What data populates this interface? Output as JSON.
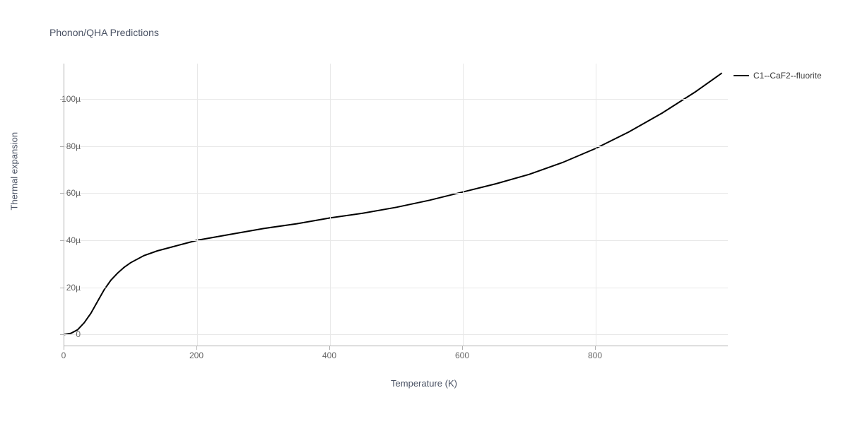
{
  "chart": {
    "type": "line",
    "title": "Phonon/QHA Predictions",
    "xlabel": "Temperature (K)",
    "ylabel": "Thermal expansion",
    "background_color": "#ffffff",
    "grid_color": "#e8e8e8",
    "axis_color": "#b0b0b0",
    "text_color": "#4a5264",
    "tick_label_color": "#666666",
    "title_fontsize": 14,
    "label_fontsize": 13,
    "tick_fontsize": 12,
    "line_color": "#000000",
    "line_width": 2,
    "xlim": [
      0,
      1000
    ],
    "ylim": [
      -5,
      115
    ],
    "x_ticks": [
      0,
      200,
      400,
      600,
      800
    ],
    "x_tick_labels": [
      "0",
      "200",
      "400",
      "600",
      "800"
    ],
    "y_ticks": [
      0,
      20,
      40,
      60,
      80,
      100
    ],
    "y_tick_labels": [
      "0",
      "20µ",
      "40µ",
      "60µ",
      "80µ",
      "100µ"
    ],
    "x_max_visible": 990,
    "legend": {
      "label": "C1--CaF2--fluorite",
      "line_color": "#000000"
    },
    "series": {
      "x": [
        0,
        10,
        20,
        30,
        40,
        50,
        60,
        70,
        80,
        90,
        100,
        120,
        140,
        160,
        180,
        200,
        250,
        300,
        350,
        400,
        450,
        500,
        550,
        600,
        650,
        700,
        750,
        800,
        850,
        900,
        950,
        990
      ],
      "y": [
        0,
        0.5,
        2,
        5,
        9,
        14,
        19,
        23,
        26,
        28.5,
        30.5,
        33.5,
        35.5,
        37,
        38.5,
        40,
        42.5,
        45,
        47,
        49.5,
        51.5,
        54,
        57,
        60.5,
        64,
        68,
        73,
        79,
        86,
        94,
        103,
        111
      ]
    }
  }
}
